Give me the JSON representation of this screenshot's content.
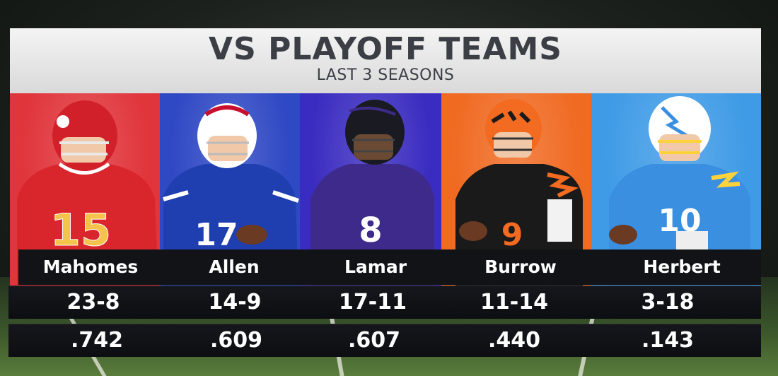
{
  "graphic": {
    "title": "VS PLAYOFF TEAMS",
    "subtitle": "LAST 3 SEASONS"
  },
  "players": [
    {
      "name": "Mahomes",
      "record": "23-8",
      "pct": ".742",
      "jersey": "15",
      "panel_color": "#e0353b",
      "helmet_color": "#d2202a",
      "uniform_color": "#d9262c",
      "number_color": "#f5c24b"
    },
    {
      "name": "Allen",
      "record": "14-9",
      "pct": ".609",
      "jersey": "17",
      "panel_color": "#2f48c4",
      "helmet_color": "#ffffff",
      "uniform_color": "#1f3fb0",
      "number_color": "#ffffff"
    },
    {
      "name": "Lamar",
      "record": "17-11",
      "pct": ".607",
      "jersey": "8",
      "panel_color": "#3a2cc0",
      "helmet_color": "#1a1a22",
      "uniform_color": "#3e2a8a",
      "number_color": "#ffffff"
    },
    {
      "name": "Burrow",
      "record": "11-14",
      "pct": ".440",
      "jersey": "9",
      "panel_color": "#f06a22",
      "helmet_color": "#f26b20",
      "uniform_color": "#1a1a1a",
      "number_color": "#f26b20"
    },
    {
      "name": "Herbert",
      "record": "3-18",
      "pct": ".143",
      "jersey": "10",
      "panel_color": "#3f9be6",
      "helmet_color": "#ffffff",
      "uniform_color": "#3a8fe0",
      "number_color": "#ffd23a"
    }
  ]
}
